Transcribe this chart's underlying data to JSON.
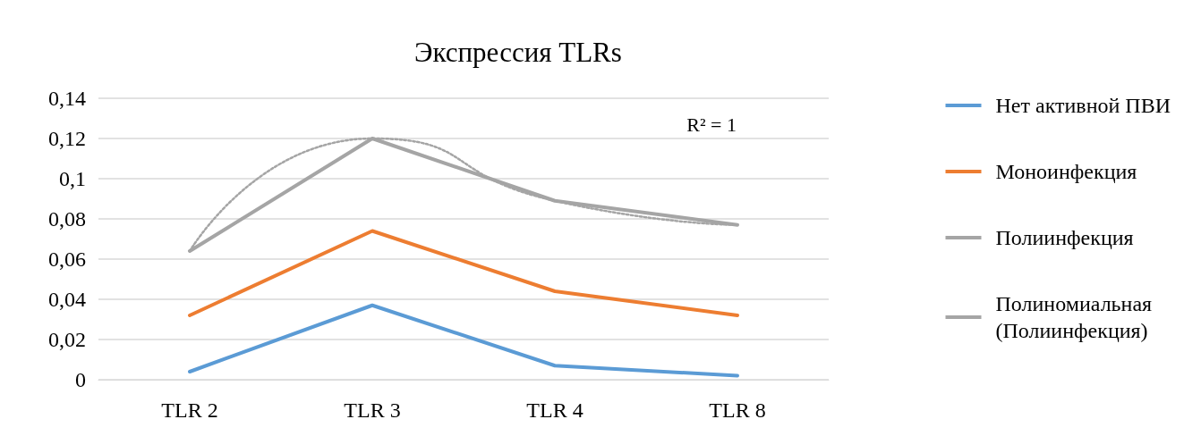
{
  "chart_data": {
    "type": "line",
    "title": "Экспрессия TLRs",
    "categories": [
      "TLR 2",
      "TLR 3",
      "TLR 4",
      "TLR 8"
    ],
    "series": [
      {
        "name": "Нет активной ПВИ",
        "color": "#5b9bd5",
        "values": [
          0.004,
          0.037,
          0.007,
          0.002
        ]
      },
      {
        "name": "Моноинфекция",
        "color": "#ed7d31",
        "values": [
          0.032,
          0.074,
          0.044,
          0.032
        ]
      },
      {
        "name": "Полиинфекция",
        "color": "#a5a5a5",
        "values": [
          0.064,
          0.12,
          0.089,
          0.077
        ]
      },
      {
        "name": "Полиномиальная (Полиинфекция)",
        "color": "#a5a5a5",
        "type": "line",
        "line_style": "dotted",
        "values": [
          0.064,
          0.12,
          0.089,
          0.077
        ]
      }
    ],
    "ylim": [
      0,
      0.14
    ],
    "yticks": [
      0,
      {
        "value": 0.02,
        "label": "0,02"
      },
      {
        "value": 0.04,
        "label": "0,04"
      },
      {
        "value": 0.06,
        "label": "0,06"
      },
      {
        "value": 0.08,
        "label": "0,08"
      },
      {
        "value": 0.1,
        "label": "0,1"
      },
      {
        "value": 0.12,
        "label": "0,12"
      },
      {
        "value": 0.14,
        "label": "0,14"
      }
    ],
    "annotations": [
      "R² = 1"
    ],
    "grid": "y",
    "legend": "right",
    "marker": "none",
    "line_style": "solid"
  }
}
